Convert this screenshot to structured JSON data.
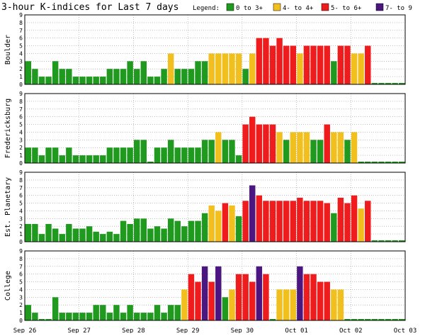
{
  "title": "3-hour K-indices for Last 7 days",
  "legend": {
    "title": "Legend:",
    "entries": [
      {
        "label": "0 to 3+",
        "color": "#1f9a1f"
      },
      {
        "label": "4- to 4+",
        "color": "#f2c01e"
      },
      {
        "label": "5- to 6+",
        "color": "#ee1c1c"
      },
      {
        "label": "7- to 9",
        "color": "#4b1680"
      }
    ]
  },
  "chart_data": {
    "type": "bar",
    "ylim": [
      0,
      9
    ],
    "yticks": [
      "0",
      "1",
      "2",
      "3",
      "4",
      "5",
      "6",
      "7",
      "8",
      "9"
    ],
    "x_labels": [
      "Sep 26",
      "Sep 27",
      "Sep 28",
      "Sep 29",
      "Sep 30",
      "Oct 01",
      "Oct 02",
      "Oct 03"
    ],
    "grid": true,
    "color_scale": {
      "green": "#1f9a1f",
      "yellow": "#f2c01e",
      "red": "#ee1c1c",
      "purple": "#4b1680"
    },
    "stations": [
      {
        "name": "Boulder",
        "values": [
          3,
          2,
          1,
          1,
          3,
          2,
          2,
          1,
          1,
          1,
          1,
          1,
          2,
          2,
          2,
          3,
          2,
          3,
          1,
          1,
          2,
          4,
          2,
          2,
          2,
          3,
          3,
          4,
          4,
          4,
          4,
          4,
          2,
          4,
          6,
          6,
          5,
          6,
          5,
          5,
          4,
          5,
          5,
          5,
          5,
          3,
          5,
          5,
          4,
          4,
          5,
          0,
          0,
          0,
          0,
          0
        ]
      },
      {
        "name": "Fredericksburg",
        "values": [
          2,
          2,
          1,
          2,
          2,
          1,
          2,
          1,
          1,
          1,
          1,
          1,
          2,
          2,
          2,
          2,
          3,
          3,
          0,
          2,
          2,
          3,
          2,
          2,
          2,
          2,
          3,
          3,
          4,
          3,
          3,
          1,
          5,
          6,
          5,
          5,
          5,
          4,
          3,
          4,
          4,
          4,
          3,
          3,
          5,
          4,
          4,
          3,
          4,
          0,
          0,
          0,
          0,
          0,
          0,
          0
        ]
      },
      {
        "name": "Est. Planetary",
        "values": [
          2.3,
          2.3,
          1,
          2.3,
          1.7,
          1,
          2.3,
          1.7,
          1.7,
          2,
          1.3,
          1,
          1.3,
          1,
          2.7,
          2.3,
          3,
          3,
          1.7,
          2,
          1.7,
          3,
          2.7,
          2,
          2.7,
          2.7,
          3.7,
          4.7,
          4,
          5,
          4.7,
          3.3,
          5.3,
          7.3,
          6,
          5.3,
          5.3,
          5.3,
          5.3,
          5.3,
          5.7,
          5.3,
          5.3,
          5.3,
          5,
          3.7,
          5.7,
          5,
          6,
          4.3,
          5.3,
          0,
          0,
          0,
          0,
          0
        ]
      },
      {
        "name": "College",
        "values": [
          2,
          1,
          0,
          0,
          3,
          1,
          1,
          1,
          1,
          1,
          2,
          2,
          1,
          2,
          1,
          2,
          1,
          1,
          1,
          2,
          1,
          2,
          2,
          4,
          6,
          5,
          7,
          5,
          7,
          3,
          4,
          6,
          6,
          5,
          7,
          6,
          0,
          4,
          4,
          4,
          7,
          6,
          6,
          5,
          5,
          4,
          4,
          0,
          0,
          0,
          0,
          0,
          0,
          0,
          0,
          0
        ]
      }
    ]
  }
}
